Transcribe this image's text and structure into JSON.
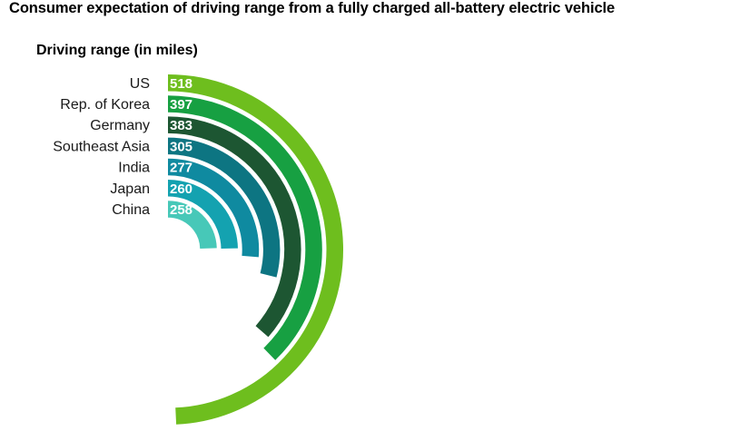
{
  "title": "Consumer expectation of driving range from a fully charged all-battery electric vehicle",
  "chart_data": {
    "type": "radial-bar",
    "title": "Consumer expectation of driving range from a fully charged all-battery electric vehicle",
    "subtitle": "Driving range (in miles)",
    "categories": [
      "US",
      "Rep. of Korea",
      "Germany",
      "Southeast Asia",
      "India",
      "Japan",
      "China"
    ],
    "values": [
      518,
      397,
      383,
      305,
      277,
      260,
      258
    ],
    "colors": [
      "#6ebe1e",
      "#17a042",
      "#1d5632",
      "#0d7582",
      "#0f8aa0",
      "#14a2b0",
      "#47c8b8"
    ],
    "legend": false,
    "grid": false
  }
}
